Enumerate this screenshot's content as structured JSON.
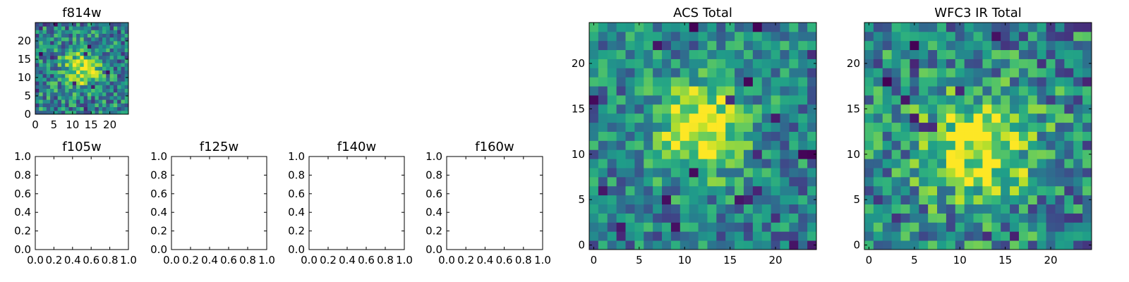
{
  "figure": {
    "colormap": "viridis",
    "frame_color": "#000000",
    "background": "#ffffff"
  },
  "chart_data": [
    {
      "id": "f814w",
      "type": "heatmap",
      "title": "f814w",
      "xlim": [
        0,
        25
      ],
      "ylim": [
        0,
        25
      ],
      "xticks": [
        "0",
        "5",
        "10",
        "15",
        "20"
      ],
      "yticks": [
        "0",
        "5",
        "10",
        "15",
        "20"
      ],
      "grid": false,
      "image_shape": [
        25,
        25
      ],
      "peak_center": [
        12,
        12
      ],
      "peak_width": 3.2,
      "noise_level": 0.3
    },
    {
      "id": "f105w",
      "type": "heatmap",
      "title": "f105w",
      "xlim": [
        0,
        1
      ],
      "ylim": [
        0,
        1
      ],
      "xticks": [
        "0.0",
        "0.2",
        "0.4",
        "0.6",
        "0.8",
        "1.0"
      ],
      "yticks": [
        "0.0",
        "0.2",
        "0.4",
        "0.6",
        "0.8",
        "1.0"
      ],
      "grid": false,
      "empty": true
    },
    {
      "id": "f125w",
      "type": "heatmap",
      "title": "f125w",
      "xlim": [
        0,
        1
      ],
      "ylim": [
        0,
        1
      ],
      "xticks": [
        "0.0",
        "0.2",
        "0.4",
        "0.6",
        "0.8",
        "1.0"
      ],
      "yticks": [
        "0.0",
        "0.2",
        "0.4",
        "0.6",
        "0.8",
        "1.0"
      ],
      "grid": false,
      "empty": true
    },
    {
      "id": "f140w",
      "type": "heatmap",
      "title": "f140w",
      "xlim": [
        0,
        1
      ],
      "ylim": [
        0,
        1
      ],
      "xticks": [
        "0.0",
        "0.2",
        "0.4",
        "0.6",
        "0.8",
        "1.0"
      ],
      "yticks": [
        "0.0",
        "0.2",
        "0.4",
        "0.6",
        "0.8",
        "1.0"
      ],
      "grid": false,
      "empty": true
    },
    {
      "id": "f160w",
      "type": "heatmap",
      "title": "f160w",
      "xlim": [
        0,
        1
      ],
      "ylim": [
        0,
        1
      ],
      "xticks": [
        "0.0",
        "0.2",
        "0.4",
        "0.6",
        "0.8",
        "1.0"
      ],
      "yticks": [
        "0.0",
        "0.2",
        "0.4",
        "0.6",
        "0.8",
        "1.0"
      ],
      "grid": false,
      "empty": true
    },
    {
      "id": "acs-total",
      "type": "heatmap",
      "title": "ACS Total",
      "xlim": [
        -0.5,
        24.5
      ],
      "ylim": [
        -0.5,
        24.5
      ],
      "xticks": [
        "0",
        "5",
        "10",
        "15",
        "20"
      ],
      "yticks": [
        "0",
        "5",
        "10",
        "15",
        "20"
      ],
      "grid": false,
      "image_shape": [
        25,
        25
      ],
      "peak_center": [
        12,
        13
      ],
      "peak_width": 3.6,
      "noise_level": 0.26
    },
    {
      "id": "wfc3-ir-total",
      "type": "heatmap",
      "title": "WFC3 IR Total",
      "xlim": [
        -0.5,
        24.5
      ],
      "ylim": [
        -0.5,
        24.5
      ],
      "xticks": [
        "0",
        "5",
        "10",
        "15",
        "20"
      ],
      "yticks": [
        "0",
        "5",
        "10",
        "15",
        "20"
      ],
      "grid": false,
      "image_shape": [
        25,
        25
      ],
      "peak_center": [
        12,
        11
      ],
      "peak_width": 4.2,
      "noise_level": 0.32
    }
  ]
}
